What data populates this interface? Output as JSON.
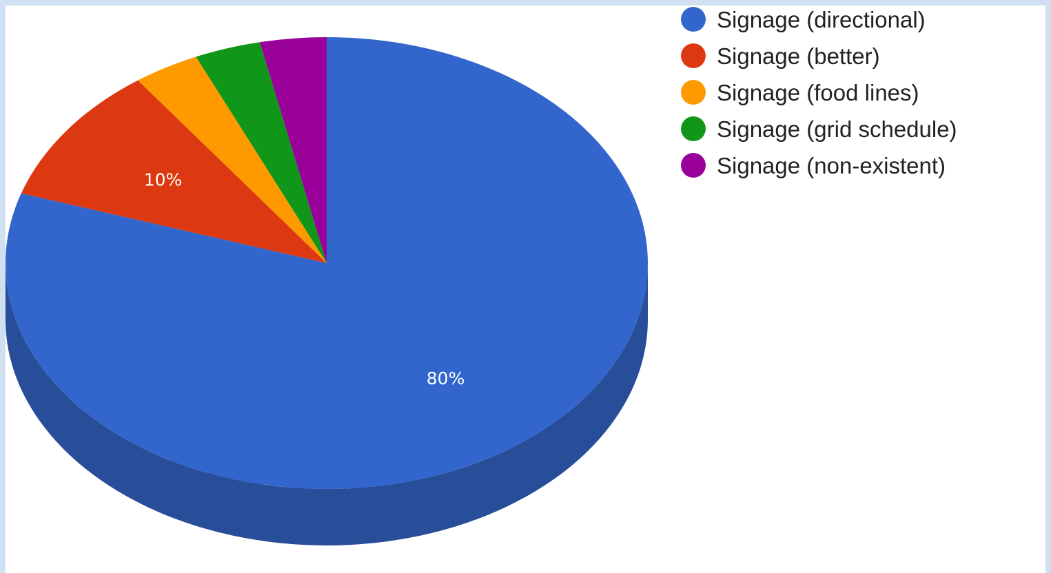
{
  "chart_data": {
    "type": "pie",
    "style": "3d",
    "start_angle_deg": 0,
    "direction": "clockwise",
    "slices": [
      {
        "label": "Signage (directional)",
        "value": 80,
        "color": "#3366cc",
        "side_color": "#284d99",
        "data_label": "80%"
      },
      {
        "label": "Signage (better)",
        "value": 10,
        "color": "#dc3912",
        "side_color": "#a52b0e",
        "data_label": "10%"
      },
      {
        "label": "Signage (food lines)",
        "value": 3.33,
        "color": "#ff9900",
        "side_color": "#bf7300",
        "data_label": ""
      },
      {
        "label": "Signage (grid schedule)",
        "value": 3.33,
        "color": "#109618",
        "side_color": "#0c7112",
        "data_label": ""
      },
      {
        "label": "Signage (non-existent)",
        "value": 3.34,
        "color": "#990099",
        "side_color": "#730073",
        "data_label": ""
      }
    ],
    "legend": {
      "position": "top-right",
      "entries": [
        "Signage (directional)",
        "Signage (better)",
        "Signage (food lines)",
        "Signage (grid schedule)",
        "Signage (non-existent)"
      ]
    }
  }
}
